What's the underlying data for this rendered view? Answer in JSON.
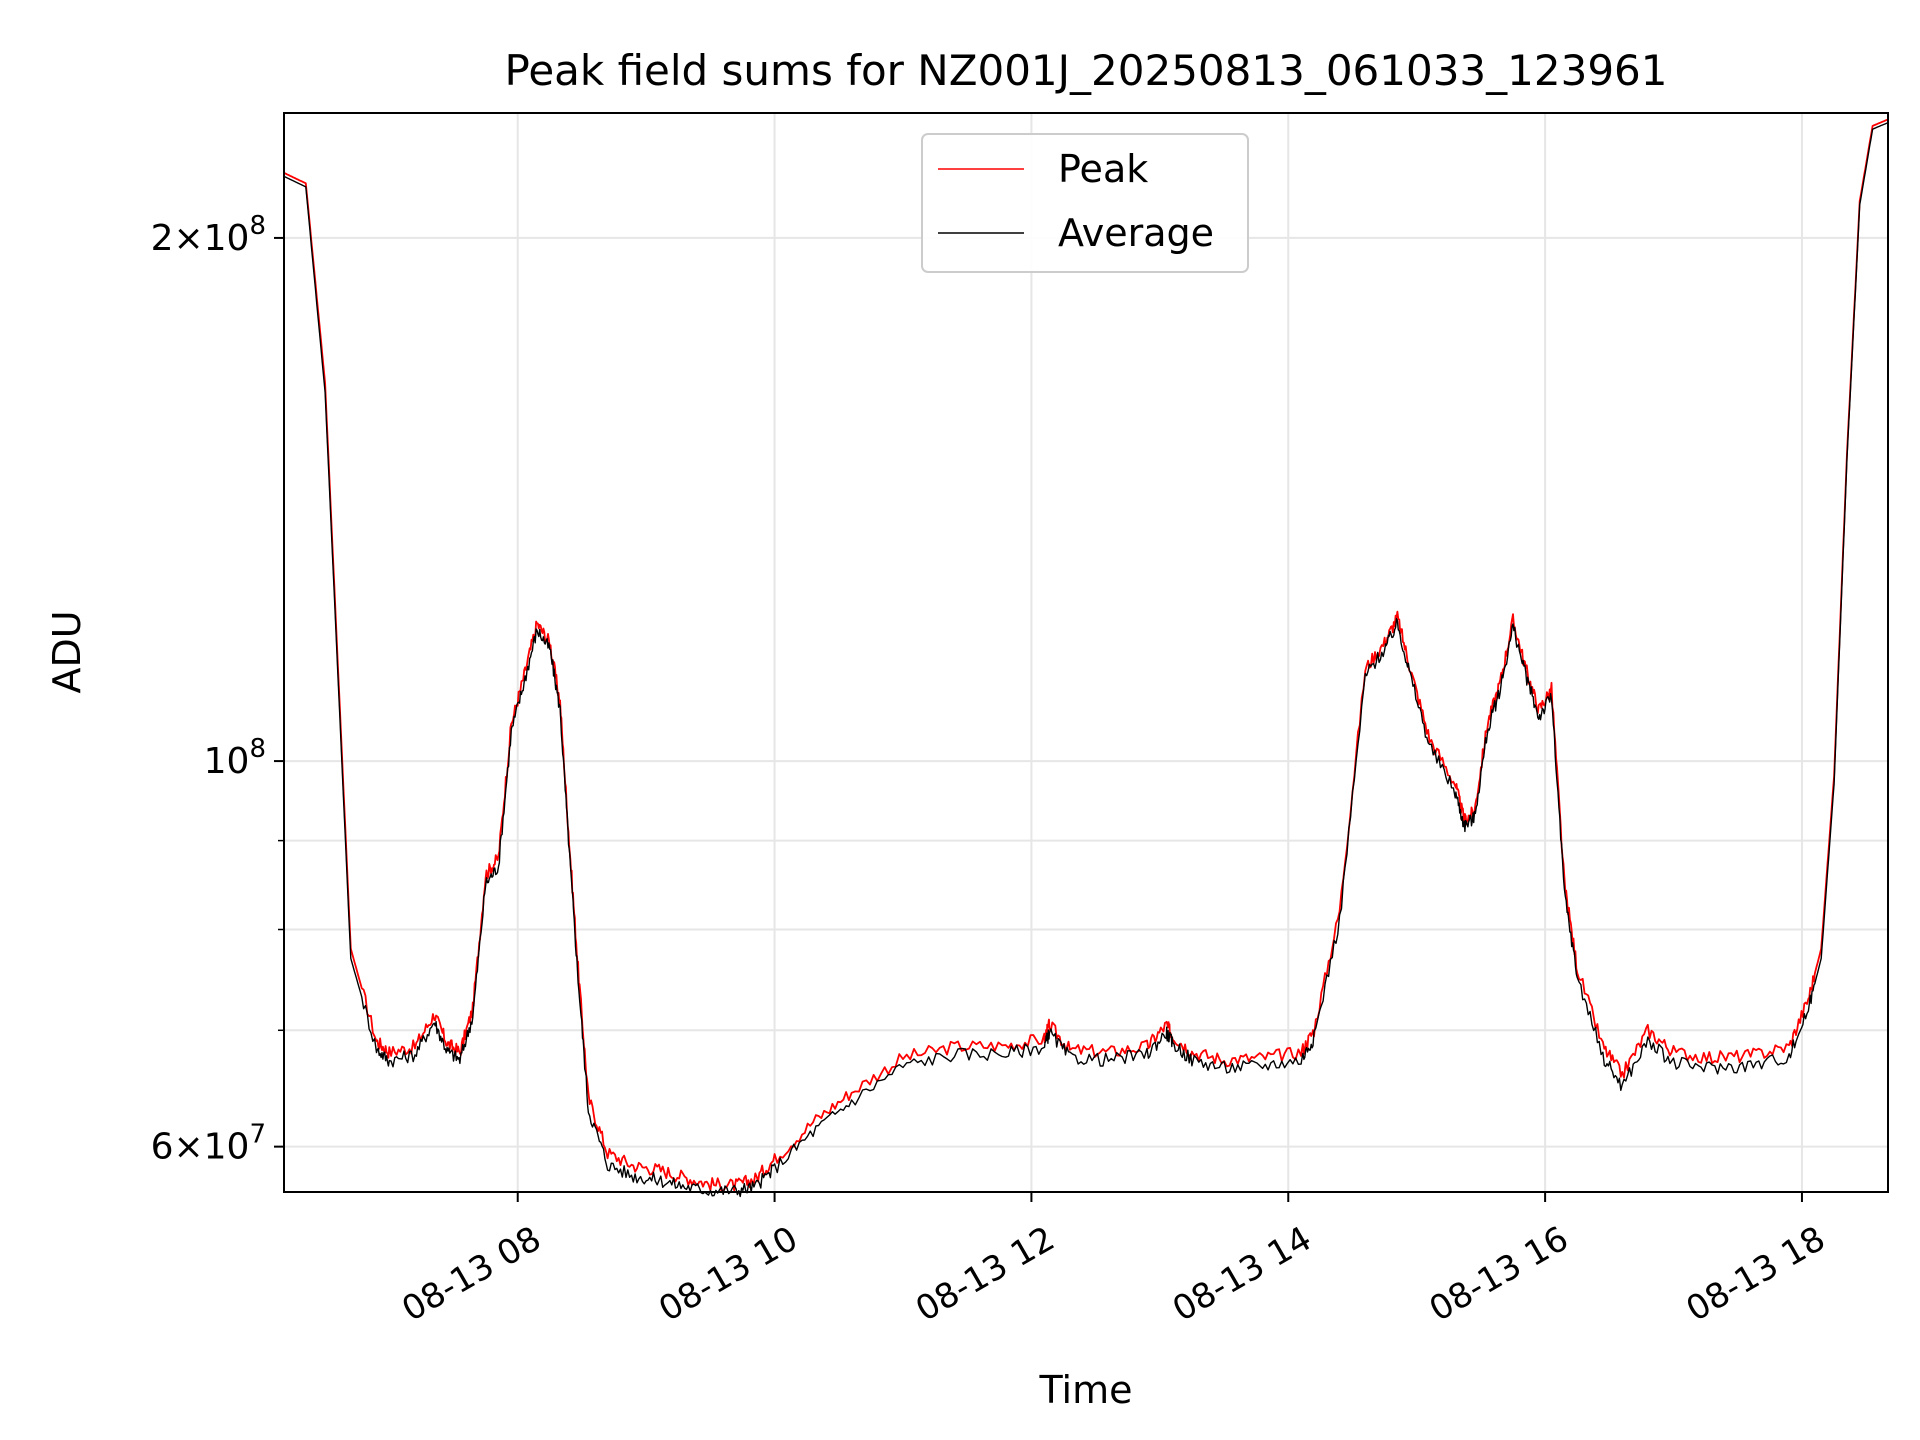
{
  "chart_data": {
    "type": "line",
    "title": "Peak field sums for NZ001J_20250813_061033_123961",
    "xlabel": "Time",
    "ylabel": "ADU",
    "x_unit": "hours",
    "xlim": [
      6.18,
      18.67
    ],
    "ylim": [
      56500000,
      236000000
    ],
    "yscale": "log",
    "grid": true,
    "legend_position": "upper center",
    "x_ticks": [
      {
        "value": 8,
        "label": "08-13 08"
      },
      {
        "value": 10,
        "label": "08-13 10"
      },
      {
        "value": 12,
        "label": "08-13 12"
      },
      {
        "value": 14,
        "label": "08-13 14"
      },
      {
        "value": 16,
        "label": "08-13 16"
      },
      {
        "value": 18,
        "label": "08-13 18"
      }
    ],
    "y_ticks": [
      {
        "value": 60000000,
        "mantissa": "6",
        "exponent": "7"
      },
      {
        "value": 100000000,
        "mantissa": "",
        "exponent": "8"
      },
      {
        "value": 200000000,
        "mantissa": "2",
        "exponent": "8"
      }
    ],
    "y_minor_ticks": [
      70000000,
      80000000,
      90000000
    ],
    "x": [
      6.18,
      6.35,
      6.5,
      6.7,
      6.9,
      7.0,
      7.2,
      7.35,
      7.45,
      7.55,
      7.65,
      7.75,
      7.85,
      7.95,
      8.05,
      8.15,
      8.25,
      8.33,
      8.4,
      8.47,
      8.55,
      8.7,
      8.9,
      9.1,
      9.3,
      9.5,
      9.7,
      9.85,
      10.0,
      10.3,
      10.6,
      11.0,
      11.4,
      11.8,
      12.1,
      12.14,
      12.3,
      12.6,
      12.9,
      13.05,
      13.1,
      13.25,
      13.5,
      13.8,
      14.1,
      14.2,
      14.4,
      14.6,
      14.75,
      14.85,
      14.95,
      15.1,
      15.3,
      15.37,
      15.45,
      15.55,
      15.65,
      15.75,
      15.85,
      15.95,
      16.05,
      16.15,
      16.25,
      16.45,
      16.6,
      16.8,
      17.0,
      17.3,
      17.6,
      17.9,
      18.05,
      18.15,
      18.25,
      18.35,
      18.45,
      18.55,
      18.67
    ],
    "series": [
      {
        "name": "Peak",
        "color": "#ff0000",
        "values": [
          218000000,
          215000000,
          165000000,
          78000000,
          69000000,
          68000000,
          68500000,
          71500000,
          68800000,
          68000000,
          72000000,
          86000000,
          88000000,
          105000000,
          112000000,
          120000000,
          117000000,
          108000000,
          90000000,
          76000000,
          64000000,
          59500000,
          58500000,
          58200000,
          57600000,
          57100000,
          57000000,
          57500000,
          59000000,
          62000000,
          64500000,
          67500000,
          68500000,
          68600000,
          69200000,
          70500000,
          68200000,
          68000000,
          68500000,
          70500000,
          69500000,
          68000000,
          67300000,
          67500000,
          68000000,
          70000000,
          82000000,
          113000000,
          117000000,
          121000000,
          113000000,
          103000000,
          97000000,
          92500000,
          93500000,
          105000000,
          111000000,
          120500000,
          113000000,
          107000000,
          110000000,
          85000000,
          76000000,
          68500000,
          66000000,
          70000000,
          68000000,
          67500000,
          67700000,
          68500000,
          73000000,
          78000000,
          98000000,
          150000000,
          210000000,
          232000000,
          234000000
        ]
      },
      {
        "name": "Average",
        "color": "#000000",
        "values": [
          217000000,
          214000000,
          163000000,
          77000000,
          68300000,
          67200000,
          67800000,
          70800000,
          68100000,
          67300000,
          71300000,
          85000000,
          87000000,
          104000000,
          111000000,
          119000000,
          116000000,
          107000000,
          89000000,
          75000000,
          63000000,
          58600000,
          57700000,
          57400000,
          56900000,
          56600000,
          56600000,
          56900000,
          58300000,
          61200000,
          63700000,
          66800000,
          67800000,
          67900000,
          68500000,
          69800000,
          67500000,
          67300000,
          67800000,
          69800000,
          68800000,
          67300000,
          66600000,
          66800000,
          67300000,
          69300000,
          81000000,
          112000000,
          116000000,
          120000000,
          112000000,
          102000000,
          96000000,
          91800000,
          92800000,
          104000000,
          110000000,
          119500000,
          112000000,
          106000000,
          109000000,
          84000000,
          75200000,
          67600000,
          65000000,
          69000000,
          67000000,
          66600000,
          66800000,
          67600000,
          72000000,
          77000000,
          97000000,
          149000000,
          209000000,
          231000000,
          233000000
        ]
      }
    ]
  }
}
